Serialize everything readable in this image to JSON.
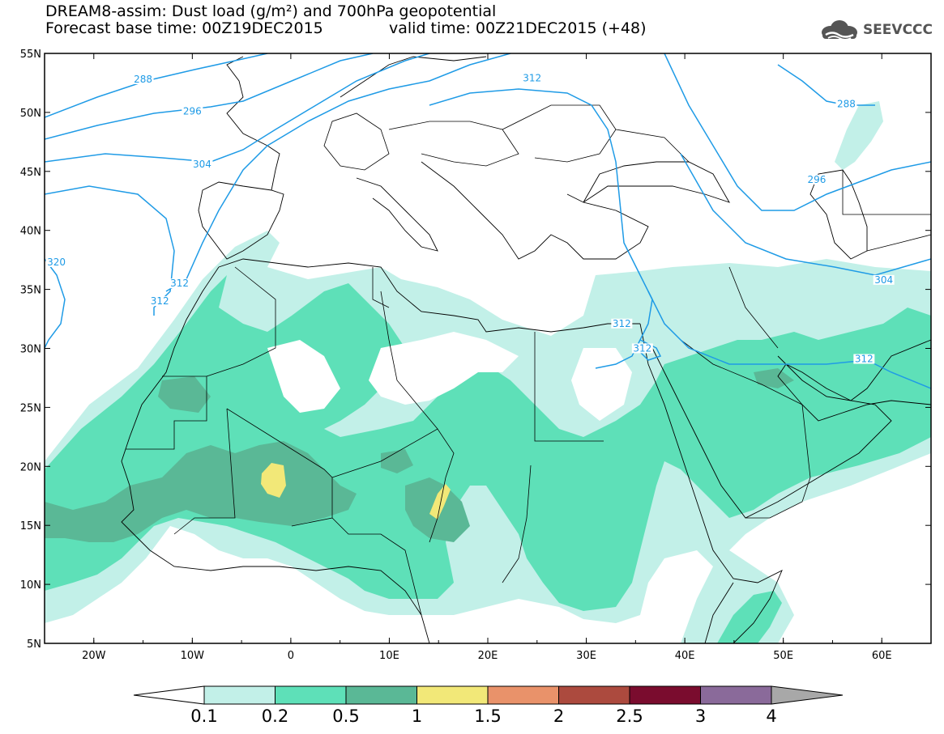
{
  "header": {
    "title_line1": "DREAM8-assim: Dust load (g/m²) and 700hPa geopotential",
    "title_line2_left": "Forecast base time: 00Z19DEC2015",
    "title_line2_right": "valid time: 00Z21DEC2015 (+48)",
    "logo_text": "SEEVCCC"
  },
  "map": {
    "lon_range": [
      -25,
      65
    ],
    "lat_range": [
      5,
      55
    ],
    "lat_labels": [
      "55N",
      "50N",
      "45N",
      "40N",
      "35N",
      "30N",
      "25N",
      "20N",
      "15N",
      "10N",
      "5N"
    ],
    "lat_values": [
      55,
      50,
      45,
      40,
      35,
      30,
      25,
      20,
      15,
      10,
      5
    ],
    "lon_labels": [
      "20W",
      "10W",
      "0",
      "10E",
      "20E",
      "30E",
      "40E",
      "50E",
      "60E"
    ],
    "lon_values": [
      -20,
      -10,
      0,
      10,
      20,
      30,
      40,
      50,
      60
    ],
    "contour_labels": [
      {
        "text": "288",
        "lon": -15,
        "lat": 52.6
      },
      {
        "text": "296",
        "lon": -10,
        "lat": 49.9
      },
      {
        "text": "304",
        "lon": -9,
        "lat": 45.4
      },
      {
        "text": "312",
        "lon": -11.3,
        "lat": 35.3
      },
      {
        "text": "312",
        "lon": -13.3,
        "lat": 33.8
      },
      {
        "text": "320",
        "lon": -23.8,
        "lat": 37.1
      },
      {
        "text": "312",
        "lon": 24.5,
        "lat": 52.7
      },
      {
        "text": "288",
        "lon": 56.4,
        "lat": 50.5
      },
      {
        "text": "296",
        "lon": 53.4,
        "lat": 44.1
      },
      {
        "text": "304",
        "lon": 60.2,
        "lat": 35.6
      },
      {
        "text": "312",
        "lon": 58.2,
        "lat": 28.9
      },
      {
        "text": "312",
        "lon": 33.6,
        "lat": 31.9
      },
      {
        "text": "312",
        "lon": 35.7,
        "lat": 29.8
      }
    ],
    "colors": {
      "level_01": "#c2f0e8",
      "level_02": "#5ee0b8",
      "level_05": "#5ab896",
      "level_1": "#f2e878",
      "contour": "#1f9be6"
    }
  },
  "colorbar": {
    "labels": [
      "0.1",
      "0.2",
      "0.5",
      "1",
      "1.5",
      "2",
      "2.5",
      "3",
      "4"
    ],
    "colors": [
      "#c2f0e8",
      "#5ee0b8",
      "#5ab896",
      "#f2e878",
      "#e9926a",
      "#ac4a3e",
      "#7a0c2e",
      "#8a6a9a"
    ],
    "under_color": "#ffffff",
    "over_color": "#a8a8a8"
  }
}
